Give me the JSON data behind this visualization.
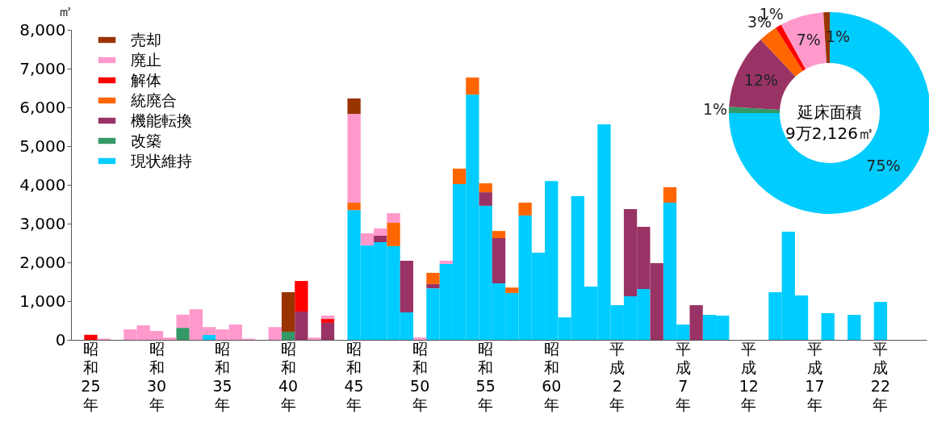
{
  "chart_data": [
    {
      "type": "bar",
      "stacked": true,
      "ylabel": "㎡",
      "categories": [
        "昭和25年",
        null,
        null,
        null,
        null,
        "昭和30年",
        null,
        null,
        null,
        null,
        "昭和35年",
        null,
        null,
        null,
        null,
        "昭和40年",
        null,
        null,
        null,
        null,
        "昭和45年",
        null,
        null,
        null,
        null,
        "昭和50年",
        null,
        null,
        null,
        null,
        "昭和55年",
        null,
        null,
        null,
        null,
        "昭和60年",
        null,
        null,
        null,
        null,
        "平成2年",
        null,
        null,
        null,
        null,
        "平成7年",
        null,
        null,
        null,
        null,
        "平成12年",
        null,
        null,
        null,
        null,
        "平成17年",
        null,
        null,
        null,
        null,
        "平成22年",
        null,
        null
      ],
      "series": [
        {
          "name": "現状維持",
          "color": "#00ccff",
          "values": [
            null,
            null,
            null,
            null,
            null,
            null,
            null,
            null,
            null,
            125,
            null,
            null,
            null,
            null,
            null,
            null,
            null,
            null,
            null,
            null,
            3350,
            2440,
            2520,
            2420,
            710,
            null,
            1330,
            1960,
            4020,
            6330,
            3460,
            1460,
            1210,
            3210,
            2250,
            4100,
            580,
            3710,
            1375,
            5560,
            895,
            1125,
            1310,
            null,
            3540,
            395,
            null,
            645,
            625,
            null,
            null,
            null,
            1230,
            2790,
            1145,
            null,
            690,
            null,
            645,
            null,
            980,
            null,
            null
          ]
        },
        {
          "name": "改築",
          "color": "#339966",
          "values": [
            null,
            null,
            null,
            null,
            null,
            null,
            null,
            310,
            null,
            null,
            null,
            null,
            null,
            null,
            null,
            210,
            null,
            null,
            null,
            null,
            null,
            null,
            null,
            null,
            null,
            null,
            null,
            null,
            null,
            null,
            null,
            null,
            null,
            null,
            null,
            null,
            null,
            null,
            null,
            null,
            null,
            null,
            null,
            null,
            null,
            null,
            null,
            null,
            null,
            null,
            null,
            null,
            null,
            null,
            null,
            null,
            null,
            null,
            null,
            null,
            null,
            null,
            null
          ]
        },
        {
          "name": "機能転換",
          "color": "#993366",
          "values": [
            null,
            null,
            null,
            null,
            null,
            null,
            null,
            null,
            null,
            null,
            null,
            null,
            null,
            null,
            null,
            null,
            730,
            null,
            440,
            null,
            null,
            null,
            170,
            null,
            1330,
            null,
            110,
            null,
            null,
            null,
            350,
            1165,
            null,
            null,
            null,
            null,
            null,
            null,
            null,
            null,
            null,
            2250,
            1605,
            1980,
            null,
            null,
            895,
            null,
            null,
            null,
            null,
            null,
            null,
            null,
            null,
            null,
            null,
            null,
            null,
            null,
            null,
            null,
            null
          ]
        },
        {
          "name": "統廃合",
          "color": "#ff6600",
          "values": [
            null,
            null,
            null,
            null,
            null,
            null,
            null,
            null,
            null,
            null,
            null,
            null,
            null,
            null,
            null,
            null,
            null,
            null,
            null,
            null,
            190,
            null,
            null,
            600,
            null,
            null,
            290,
            null,
            400,
            440,
            230,
            185,
            140,
            330,
            null,
            null,
            null,
            null,
            null,
            null,
            null,
            null,
            null,
            null,
            400,
            null,
            null,
            null,
            null,
            null,
            null,
            null,
            null,
            null,
            null,
            null,
            null,
            null,
            null,
            null,
            null,
            null,
            null
          ]
        },
        {
          "name": "解体",
          "color": "#ff0000",
          "values": [
            130,
            null,
            null,
            null,
            null,
            null,
            null,
            null,
            null,
            null,
            null,
            null,
            null,
            null,
            null,
            null,
            790,
            null,
            100,
            null,
            null,
            null,
            null,
            null,
            null,
            null,
            null,
            null,
            null,
            null,
            null,
            null,
            null,
            null,
            null,
            null,
            null,
            null,
            null,
            null,
            null,
            null,
            null,
            null,
            null,
            null,
            null,
            null,
            null,
            null,
            null,
            null,
            null,
            null,
            null,
            null,
            null,
            null,
            null,
            null,
            null,
            null,
            null
          ]
        },
        {
          "name": "廃止",
          "color": "#ff99cc",
          "values": [
            null,
            30,
            null,
            270,
            375,
            230,
            60,
            340,
            790,
            205,
            270,
            395,
            30,
            null,
            330,
            null,
            null,
            60,
            85,
            null,
            2290,
            310,
            185,
            250,
            null,
            60,
            null,
            80,
            null,
            null,
            null,
            null,
            null,
            null,
            null,
            null,
            null,
            null,
            null,
            null,
            null,
            null,
            null,
            null,
            null,
            null,
            null,
            null,
            null,
            null,
            null,
            null,
            null,
            null,
            null,
            null,
            null,
            null,
            null,
            null,
            null,
            null,
            null
          ]
        },
        {
          "name": "売却",
          "color": "#993300",
          "values": [
            null,
            null,
            null,
            null,
            null,
            null,
            null,
            null,
            null,
            null,
            null,
            null,
            null,
            null,
            null,
            1020,
            null,
            null,
            null,
            null,
            400,
            null,
            null,
            null,
            null,
            null,
            null,
            null,
            null,
            null,
            null,
            null,
            null,
            null,
            null,
            null,
            null,
            null,
            null,
            null,
            null,
            null,
            null,
            null,
            null,
            null,
            null,
            null,
            null,
            null,
            null,
            null,
            null,
            null,
            null,
            null,
            null,
            null,
            null,
            null,
            null,
            null,
            null
          ]
        }
      ],
      "ylim": [
        0,
        8000
      ],
      "yticks": [
        0,
        {
          "value": 1000,
          "label": "1,000"
        },
        {
          "value": 2000,
          "label": "2,000"
        },
        {
          "value": 3000,
          "label": "3,000"
        },
        {
          "value": 4000,
          "label": "4,000"
        },
        {
          "value": 5000,
          "label": "5,000"
        },
        {
          "value": 6000,
          "label": "6,000"
        },
        {
          "value": 7000,
          "label": "7,000"
        },
        {
          "value": 8000,
          "label": "8,000"
        }
      ],
      "grid": false,
      "legend": "top left"
    },
    {
      "type": "donut",
      "categories": [
        null,
        null,
        null,
        null,
        null,
        null,
        null
      ],
      "values": [
        75,
        1,
        12,
        3,
        1,
        7,
        1
      ],
      "colors": [
        "#00ccff",
        "#339966",
        "#993366",
        "#ff6600",
        "#ff0000",
        "#ff99cc",
        "#993300"
      ],
      "value_labels": [
        "75%",
        "1%",
        "12%",
        "3%",
        "1%",
        "7%",
        "1%"
      ],
      "annotations": [
        "延床面積",
        "9万2,126㎡"
      ],
      "legend": false
    }
  ]
}
